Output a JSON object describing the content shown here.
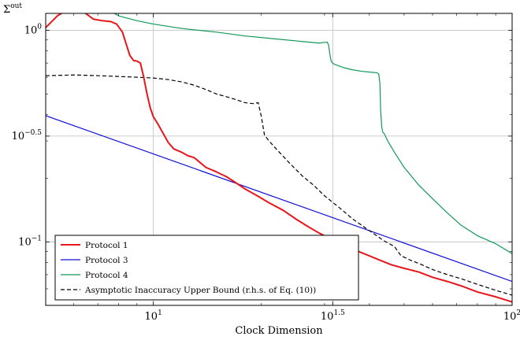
{
  "chart_data": {
    "type": "line",
    "xscale": "log",
    "yscale": "log",
    "xlim": [
      5.01,
      100
    ],
    "ylim": [
      0.0501,
      1.202
    ],
    "xlabel": "Clock Dimension",
    "ylabel_base": "Σ",
    "ylabel_sup": "out",
    "grid": true,
    "legend_position": "bottom-left",
    "x_ticks": [
      {
        "value": 10,
        "base": "10",
        "exp": "1"
      },
      {
        "value": 31.623,
        "base": "10",
        "exp": "1.5"
      },
      {
        "value": 100,
        "base": "10",
        "exp": "2"
      }
    ],
    "y_ticks": [
      {
        "value": 1,
        "base": "10",
        "exp": "0"
      },
      {
        "value": 0.3162,
        "base": "10",
        "exp": "−0.5"
      },
      {
        "value": 0.1,
        "base": "10",
        "exp": "−1"
      }
    ],
    "series": [
      {
        "name": "Protocol 1",
        "color": "#e8161b",
        "dash": "",
        "width": 2,
        "x": [
          5.01,
          5.4,
          5.8,
          6.1,
          6.4,
          6.8,
          7.2,
          7.6,
          7.9,
          8.2,
          8.4,
          8.6,
          8.8,
          9.0,
          9.2,
          9.4,
          9.6,
          9.8,
          10.0,
          10.3,
          10.6,
          11.0,
          11.4,
          12.0,
          12.5,
          13.0,
          13.5,
          14.0,
          15.0,
          16.0,
          17.0,
          18.0,
          19.5,
          21.0,
          23.0,
          25.0,
          27.0,
          29.0,
          32.0,
          35.0,
          38.0,
          42.0,
          46.0,
          50.0,
          55.0,
          60.0,
          66.0,
          72.0,
          80.0,
          90.0,
          100.0
        ],
        "y": [
          1.03,
          1.17,
          1.26,
          1.28,
          1.22,
          1.13,
          1.11,
          1.1,
          1.07,
          0.98,
          0.86,
          0.76,
          0.72,
          0.715,
          0.7,
          0.6,
          0.5,
          0.43,
          0.39,
          0.36,
          0.33,
          0.295,
          0.275,
          0.265,
          0.255,
          0.25,
          0.237,
          0.225,
          0.214,
          0.203,
          0.19,
          0.178,
          0.165,
          0.153,
          0.141,
          0.128,
          0.118,
          0.11,
          0.101,
          0.094,
          0.089,
          0.083,
          0.078,
          0.075,
          0.072,
          0.068,
          0.065,
          0.062,
          0.058,
          0.055,
          0.052
        ]
      },
      {
        "name": "Protocol 3",
        "color": "#1010d8",
        "dash": "",
        "width": 1.2,
        "x": [
          5.01,
          100
        ],
        "y": [
          0.395,
          0.065
        ]
      },
      {
        "name": "Protocol 4",
        "color": "#119955",
        "dash": "",
        "width": 1.2,
        "x": [
          5.01,
          6.0,
          7.0,
          7.8,
          8.0,
          9.0,
          10.0,
          12.0,
          15.0,
          18.0,
          22.0,
          26.0,
          29.0,
          30.5,
          30.8,
          31.0,
          31.3,
          31.6,
          32.0,
          34.0,
          36.0,
          38.0,
          40.0,
          42.0,
          42.5,
          42.8,
          43.0,
          43.3,
          43.6,
          44.0,
          45.0,
          47.0,
          50.0,
          55.0,
          60.0,
          66.0,
          72.0,
          80.0,
          90.0,
          100.0
        ],
        "y": [
          1.28,
          1.26,
          1.23,
          1.2,
          1.17,
          1.11,
          1.07,
          1.02,
          0.98,
          0.94,
          0.91,
          0.885,
          0.87,
          0.88,
          0.85,
          0.78,
          0.715,
          0.7,
          0.69,
          0.665,
          0.65,
          0.64,
          0.635,
          0.63,
          0.62,
          0.56,
          0.42,
          0.35,
          0.33,
          0.325,
          0.3,
          0.265,
          0.225,
          0.185,
          0.16,
          0.137,
          0.12,
          0.107,
          0.098,
          0.088
        ]
      },
      {
        "name": "Asymptotic Inaccuracy Upper Bound (r.h.s. of Eq. (10))",
        "color": "#000000",
        "dash": "5,3",
        "width": 1.2,
        "x": [
          5.01,
          6.0,
          7.0,
          8.0,
          9.0,
          10.0,
          11.0,
          12.0,
          13.0,
          14.0,
          15.0,
          16.0,
          17.0,
          18.0,
          19.0,
          19.6,
          20.0,
          20.4,
          21.0,
          22.0,
          24.0,
          26.0,
          28.0,
          30.0,
          33.0,
          36.0,
          40.0,
          44.0,
          47.0,
          49.0,
          52.0,
          56.0,
          60.0,
          66.0,
          72.0,
          80.0,
          90.0,
          100.0
        ],
        "y": [
          0.61,
          0.615,
          0.61,
          0.605,
          0.6,
          0.595,
          0.585,
          0.57,
          0.55,
          0.525,
          0.5,
          0.485,
          0.47,
          0.455,
          0.45,
          0.455,
          0.39,
          0.32,
          0.3,
          0.275,
          0.235,
          0.205,
          0.185,
          0.165,
          0.145,
          0.128,
          0.113,
          0.101,
          0.095,
          0.086,
          0.082,
          0.078,
          0.074,
          0.07,
          0.067,
          0.063,
          0.059,
          0.056
        ]
      }
    ]
  }
}
